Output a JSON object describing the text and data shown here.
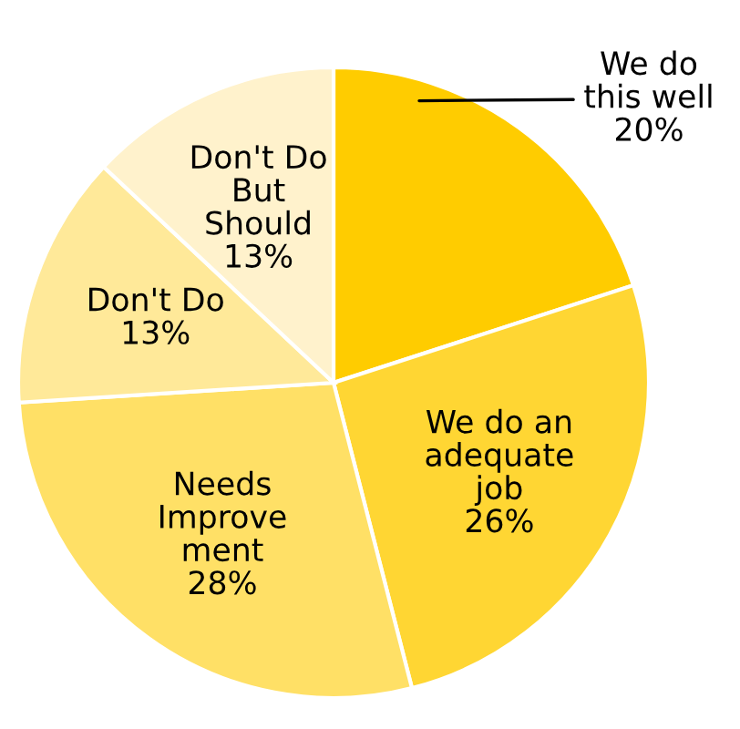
{
  "chart_data": {
    "type": "pie",
    "categories": [
      "We do\nthis well",
      "We do an\nadequate\njob",
      "Needs\nImprove\nment",
      "Don't Do",
      "Don't Do\nBut\nShould"
    ],
    "values": [
      20,
      26,
      28,
      13,
      13
    ],
    "colors": [
      "#ffcc00",
      "#ffd633",
      "#ffe066",
      "#ffe999",
      "#fff2cc"
    ],
    "value_labels": [
      "20%",
      "26%",
      "28%",
      "13%",
      "13%"
    ]
  }
}
